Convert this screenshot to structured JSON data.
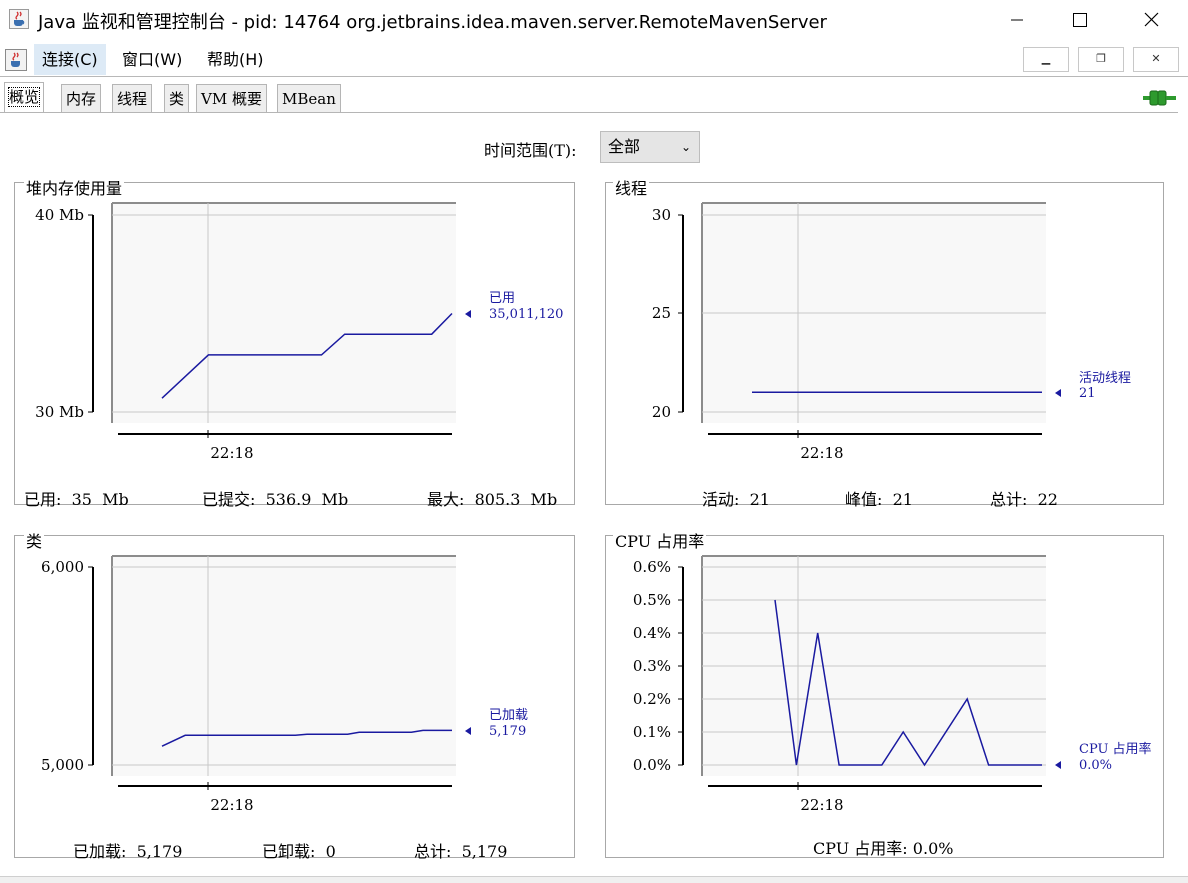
{
  "window": {
    "title": "Java 监视和管理控制台 - pid: 14764 org.jetbrains.idea.maven.server.RemoteMavenServer"
  },
  "menu": {
    "items": [
      "连接(C)",
      "窗口(W)",
      "帮助(H)"
    ]
  },
  "tabs": [
    "概览",
    "内存",
    "线程",
    "类",
    "VM 概要",
    "MBean"
  ],
  "time_range": {
    "label": "时间范围(T):",
    "value": "全部"
  },
  "icons": {
    "app": "java-cup-icon",
    "connection": "connection-plug-icon",
    "accent": "#1a1aa0",
    "plug_color": "#2e9a2e"
  },
  "chart_data": [
    {
      "id": "heap",
      "type": "line",
      "title": "堆内存使用量",
      "y_ticks": [
        "40 Mb",
        "30 Mb"
      ],
      "ylim": [
        30,
        40
      ],
      "x_tick": "22:18",
      "series": [
        {
          "name": "已用",
          "value_label": "35,011,120",
          "color": "#1a1aa0",
          "points": [
            [
              0.0,
              30.7
            ],
            [
              0.16,
              32.9
            ],
            [
              0.55,
              32.9
            ],
            [
              0.63,
              33.95
            ],
            [
              0.93,
              33.95
            ],
            [
              1.0,
              35.0
            ]
          ]
        }
      ],
      "stats": [
        {
          "label": "已用:",
          "value": "35  Mb"
        },
        {
          "label": "已提交:",
          "value": "536.9  Mb"
        },
        {
          "label": "最大:",
          "value": "805.3  Mb"
        }
      ]
    },
    {
      "id": "threads",
      "type": "line",
      "title": "线程",
      "y_ticks": [
        "30",
        "25",
        "20"
      ],
      "ylim": [
        20,
        30
      ],
      "x_tick": "22:18",
      "series": [
        {
          "name": "活动线程",
          "value_label": "21",
          "color": "#1a1aa0",
          "points": [
            [
              0.0,
              21
            ],
            [
              1.0,
              21
            ]
          ]
        }
      ],
      "stats": [
        {
          "label": "活动:",
          "value": "21"
        },
        {
          "label": "峰值:",
          "value": "21"
        },
        {
          "label": "总计:",
          "value": "22"
        }
      ]
    },
    {
      "id": "classes",
      "type": "line",
      "title": "类",
      "y_ticks": [
        "6,000",
        "5,000"
      ],
      "ylim": [
        5000,
        6000
      ],
      "x_tick": "22:18",
      "series": [
        {
          "name": "已加载",
          "value_label": "5,179",
          "color": "#1a1aa0",
          "points": [
            [
              0.0,
              5095
            ],
            [
              0.08,
              5150
            ],
            [
              0.46,
              5150
            ],
            [
              0.5,
              5155
            ],
            [
              0.64,
              5155
            ],
            [
              0.68,
              5165
            ],
            [
              0.86,
              5165
            ],
            [
              0.9,
              5175
            ],
            [
              1.0,
              5175
            ]
          ]
        }
      ],
      "stats": [
        {
          "label": "已加载:",
          "value": "5,179"
        },
        {
          "label": "已卸载:",
          "value": "0"
        },
        {
          "label": "总计:",
          "value": "5,179"
        }
      ]
    },
    {
      "id": "cpu",
      "type": "line",
      "title": "CPU 占用率",
      "y_ticks": [
        "0.6%",
        "0.5%",
        "0.4%",
        "0.3%",
        "0.2%",
        "0.1%",
        "0.0%"
      ],
      "ylim": [
        0,
        0.6
      ],
      "x_tick": "22:18",
      "series": [
        {
          "name": "CPU 占用率",
          "value_label": "0.0%",
          "color": "#1a1aa0",
          "points": [
            [
              0.0,
              0.5
            ],
            [
              0.08,
              0.0
            ],
            [
              0.16,
              0.4
            ],
            [
              0.24,
              0.0
            ],
            [
              0.4,
              0.0
            ],
            [
              0.48,
              0.1
            ],
            [
              0.56,
              0.0
            ],
            [
              0.72,
              0.2
            ],
            [
              0.8,
              0.0
            ],
            [
              1.0,
              0.0
            ]
          ]
        }
      ],
      "stats": [
        {
          "label": "CPU 占用率:",
          "value": "0.0%"
        }
      ]
    }
  ]
}
